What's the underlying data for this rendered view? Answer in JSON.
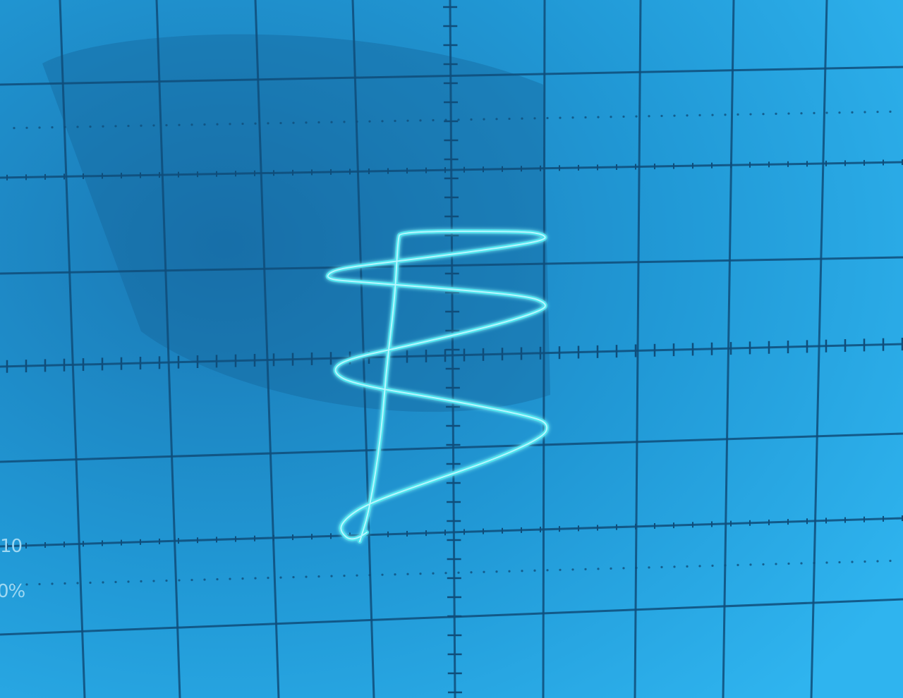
{
  "screen": {
    "background_color": "#1e8cc8",
    "grid_color": "#0f4d7a",
    "trace_color": "#4fe3ee",
    "trace_glow_color": "#b8f6ff",
    "grid_divisions": {
      "horizontal": 10,
      "vertical": 8
    }
  },
  "graticule_labels": {
    "level_10": "10",
    "percent": "0%"
  }
}
